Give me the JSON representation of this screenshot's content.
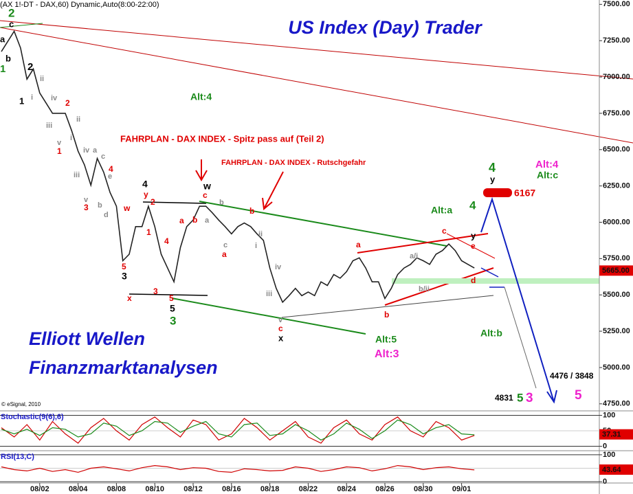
{
  "header": "(AX 1!-DT - DAX,60) Dynamic,Auto(8:00-22:00)",
  "title": "US Index (Day) Trader",
  "brand": [
    "Elliott Wellen",
    "Finanzmarktanalysen"
  ],
  "copyright": "© eSignal, 2010",
  "chart_data": [
    {
      "type": "line",
      "color": "#222222",
      "categories": [
        null,
        null,
        null,
        null,
        null,
        null,
        "08/02",
        null,
        null,
        null,
        null,
        null,
        "08/04",
        null,
        null,
        null,
        null,
        null,
        "08/08",
        null,
        null,
        null,
        null,
        null,
        "08/10",
        null,
        null,
        null,
        null,
        null,
        "08/12",
        null,
        null,
        null,
        null,
        null,
        "08/16",
        null,
        null,
        null,
        null,
        null,
        "08/18",
        null,
        null,
        null,
        null,
        null,
        "08/22",
        null,
        null,
        null,
        null,
        null,
        "08/24",
        null,
        null,
        null,
        null,
        null,
        "08/26",
        null,
        null,
        null,
        null,
        null,
        "08/30",
        null,
        null,
        null,
        null,
        null,
        "09/01",
        null,
        null
      ],
      "values": [
        7175,
        7245,
        7315,
        7200,
        6985,
        7055,
        6890,
        6820,
        6750,
        6750,
        6750,
        6630,
        6490,
        6395,
        6255,
        6440,
        6345,
        6205,
        6110,
        5735,
        5780,
        5970,
        5970,
        6110,
        5970,
        5780,
        5685,
        5590,
        5825,
        5970,
        6015,
        6110,
        6110,
        6065,
        6015,
        5970,
        5920,
        5970,
        5995,
        5970,
        5920,
        5875,
        5685,
        5545,
        5450,
        5495,
        5545,
        5495,
        5520,
        5495,
        5590,
        5565,
        5640,
        5615,
        5660,
        5735,
        5755,
        5685,
        5590,
        5590,
        5475,
        5545,
        5640,
        5685,
        5710,
        5755,
        5735,
        5710,
        5780,
        5805,
        5850,
        5805,
        5735,
        5710,
        5685
      ],
      "ylim": [
        4730,
        7530
      ],
      "yticks": [
        {
          "value": 7500,
          "label": "7500.00"
        },
        {
          "value": 7250,
          "label": "7250.00"
        },
        {
          "value": 7000,
          "label": "7000.00"
        },
        {
          "value": 6750,
          "label": "6750.00"
        },
        {
          "value": 6500,
          "label": "6500.00"
        },
        {
          "value": 6250,
          "label": "6250.00"
        },
        {
          "value": 6000,
          "label": "6000.00"
        },
        {
          "value": 5750,
          "label": "5750.00"
        },
        {
          "value": 5500,
          "label": "5500.00"
        },
        {
          "value": 5250,
          "label": "5250.00"
        },
        {
          "value": 5000,
          "label": "5000.00"
        },
        {
          "value": 4750,
          "label": "4750.00"
        }
      ],
      "last_price": {
        "value": 5665,
        "label": "5665.00"
      },
      "annotations": [
        {
          "text": "2",
          "color": "#1a8a1a"
        },
        {
          "text": "c",
          "color": "#000000"
        },
        {
          "text": "a",
          "color": "#000000"
        },
        {
          "text": "b",
          "color": "#000000"
        },
        {
          "text": "1",
          "color": "#1a8a1a"
        },
        {
          "text": "2",
          "color": "#000000"
        },
        {
          "text": "1",
          "color": "#000000"
        },
        {
          "text": "ii",
          "color": "#8a8a8a"
        },
        {
          "text": "i",
          "color": "#8a8a8a"
        },
        {
          "text": "iv",
          "color": "#8a8a8a"
        },
        {
          "text": "iii",
          "color": "#8a8a8a"
        },
        {
          "text": "2",
          "color": "#e00000"
        },
        {
          "text": "v",
          "color": "#8a8a8a"
        },
        {
          "text": "1",
          "color": "#e00000"
        },
        {
          "text": "ii",
          "color": "#8a8a8a"
        },
        {
          "text": "i",
          "color": "#8a8a8a"
        },
        {
          "text": "iv",
          "color": "#8a8a8a"
        },
        {
          "text": "a",
          "color": "#8a8a8a"
        },
        {
          "text": "iii",
          "color": "#8a8a8a"
        },
        {
          "text": "c",
          "color": "#8a8a8a"
        },
        {
          "text": "4",
          "color": "#e00000"
        },
        {
          "text": "e",
          "color": "#8a8a8a"
        },
        {
          "text": "v",
          "color": "#8a8a8a"
        },
        {
          "text": "3",
          "color": "#e00000"
        },
        {
          "text": "b",
          "color": "#8a8a8a"
        },
        {
          "text": "d",
          "color": "#8a8a8a"
        },
        {
          "text": "4",
          "color": "#000000"
        },
        {
          "text": "y",
          "color": "#e00000"
        },
        {
          "text": "w",
          "color": "#e00000"
        },
        {
          "text": "2",
          "color": "#e00000"
        },
        {
          "text": "1",
          "color": "#e00000"
        },
        {
          "text": "a",
          "color": "#e00000"
        },
        {
          "text": "4",
          "color": "#e00000"
        },
        {
          "text": "b",
          "color": "#e00000"
        },
        {
          "text": "5",
          "color": "#e00000"
        },
        {
          "text": "3",
          "color": "#000000"
        },
        {
          "text": "x",
          "color": "#e00000"
        },
        {
          "text": "3",
          "color": "#e00000"
        },
        {
          "text": "5",
          "color": "#e00000"
        },
        {
          "text": "5",
          "color": "#000000"
        },
        {
          "text": "3",
          "color": "#1a8a1a"
        },
        {
          "text": "w",
          "color": "#000000"
        },
        {
          "text": "c",
          "color": "#e00000"
        },
        {
          "text": "b",
          "color": "#8a8a8a"
        },
        {
          "text": "a",
          "color": "#8a8a8a"
        },
        {
          "text": "c",
          "color": "#8a8a8a"
        },
        {
          "text": "a",
          "color": "#e00000"
        },
        {
          "text": "b",
          "color": "#e00000"
        },
        {
          "text": "ii",
          "color": "#8a8a8a"
        },
        {
          "text": "i",
          "color": "#8a8a8a"
        },
        {
          "text": "iv",
          "color": "#8a8a8a"
        },
        {
          "text": "iii",
          "color": "#8a8a8a"
        },
        {
          "text": "v",
          "color": "#8a8a8a"
        },
        {
          "text": "c",
          "color": "#e00000"
        },
        {
          "text": "x",
          "color": "#000000"
        },
        {
          "text": "a",
          "color": "#e00000"
        },
        {
          "text": "b",
          "color": "#e00000"
        },
        {
          "text": "a/i",
          "color": "#8a8a8a"
        },
        {
          "text": "c",
          "color": "#e00000"
        },
        {
          "text": "b/ii",
          "color": "#8a8a8a"
        },
        {
          "text": "d",
          "color": "#e00000"
        },
        {
          "text": "e",
          "color": "#e00000"
        },
        {
          "text": "y",
          "color": "#000000"
        },
        {
          "text": "4",
          "color": "#1a8a1a"
        },
        {
          "text": "Alt:a",
          "color": "#1a8a1a"
        },
        {
          "text": "4",
          "color": "#1a8a1a"
        },
        {
          "text": "y",
          "color": "#000000"
        },
        {
          "text": "Alt:4",
          "color": "#ee22cc"
        },
        {
          "text": "Alt:c",
          "color": "#1a8a1a"
        },
        {
          "text": "6167",
          "color": "#e00000"
        },
        {
          "text": "Alt:5",
          "color": "#1a8a1a"
        },
        {
          "text": "Alt:3",
          "color": "#ee22cc"
        },
        {
          "text": "Alt:b",
          "color": "#1a8a1a"
        },
        {
          "text": "4476 / 3848",
          "color": "#000000"
        },
        {
          "text": "4831",
          "color": "#000000"
        },
        {
          "text": "5",
          "color": "#1a8a1a"
        },
        {
          "text": "3",
          "color": "#ee22cc"
        },
        {
          "text": "5",
          "color": "#ee22cc"
        },
        {
          "text": "Alt:4",
          "color": "#1a8a1a"
        },
        {
          "text": "FAHRPLAN - DAX INDEX - Spitz pass auf (Teil 2)",
          "color": "#e00000"
        },
        {
          "text": "FAHRPLAN - DAX INDEX - Rutschgefahr",
          "color": "#e00000"
        }
      ]
    },
    {
      "type": "line",
      "title": "Stochastic(9(6),6)",
      "series": [
        {
          "color": "#d00000",
          "values": [
            60,
            30,
            70,
            20,
            80,
            40,
            10,
            60,
            90,
            50,
            20,
            70,
            95,
            60,
            30,
            85,
            70,
            20,
            40,
            90,
            60,
            20,
            50,
            80,
            30,
            10,
            60,
            85,
            40,
            20,
            70,
            95,
            50,
            30,
            80,
            60,
            20,
            35
          ]
        },
        {
          "color": "#1a8a1a",
          "values": [
            55,
            40,
            55,
            35,
            60,
            55,
            30,
            40,
            75,
            65,
            35,
            50,
            80,
            75,
            45,
            65,
            80,
            40,
            30,
            70,
            75,
            35,
            40,
            70,
            50,
            20,
            40,
            75,
            55,
            25,
            50,
            85,
            70,
            40,
            60,
            70,
            40,
            37
          ]
        }
      ],
      "ylim": [
        -10,
        110
      ],
      "yticks": [
        100,
        50,
        0
      ],
      "last_value": 37.31
    },
    {
      "type": "line",
      "title": "RSI(13,C)",
      "series": [
        {
          "color": "#d00000",
          "values": [
            55,
            45,
            40,
            50,
            38,
            45,
            35,
            50,
            55,
            48,
            40,
            52,
            60,
            55,
            45,
            52,
            50,
            38,
            35,
            48,
            45,
            40,
            42,
            55,
            50,
            38,
            45,
            55,
            52,
            40,
            48,
            60,
            55,
            45,
            52,
            55,
            48,
            44
          ]
        }
      ],
      "ylim": [
        -10,
        110
      ],
      "yticks": [
        100,
        50,
        0
      ],
      "last_value": 43.64
    }
  ]
}
